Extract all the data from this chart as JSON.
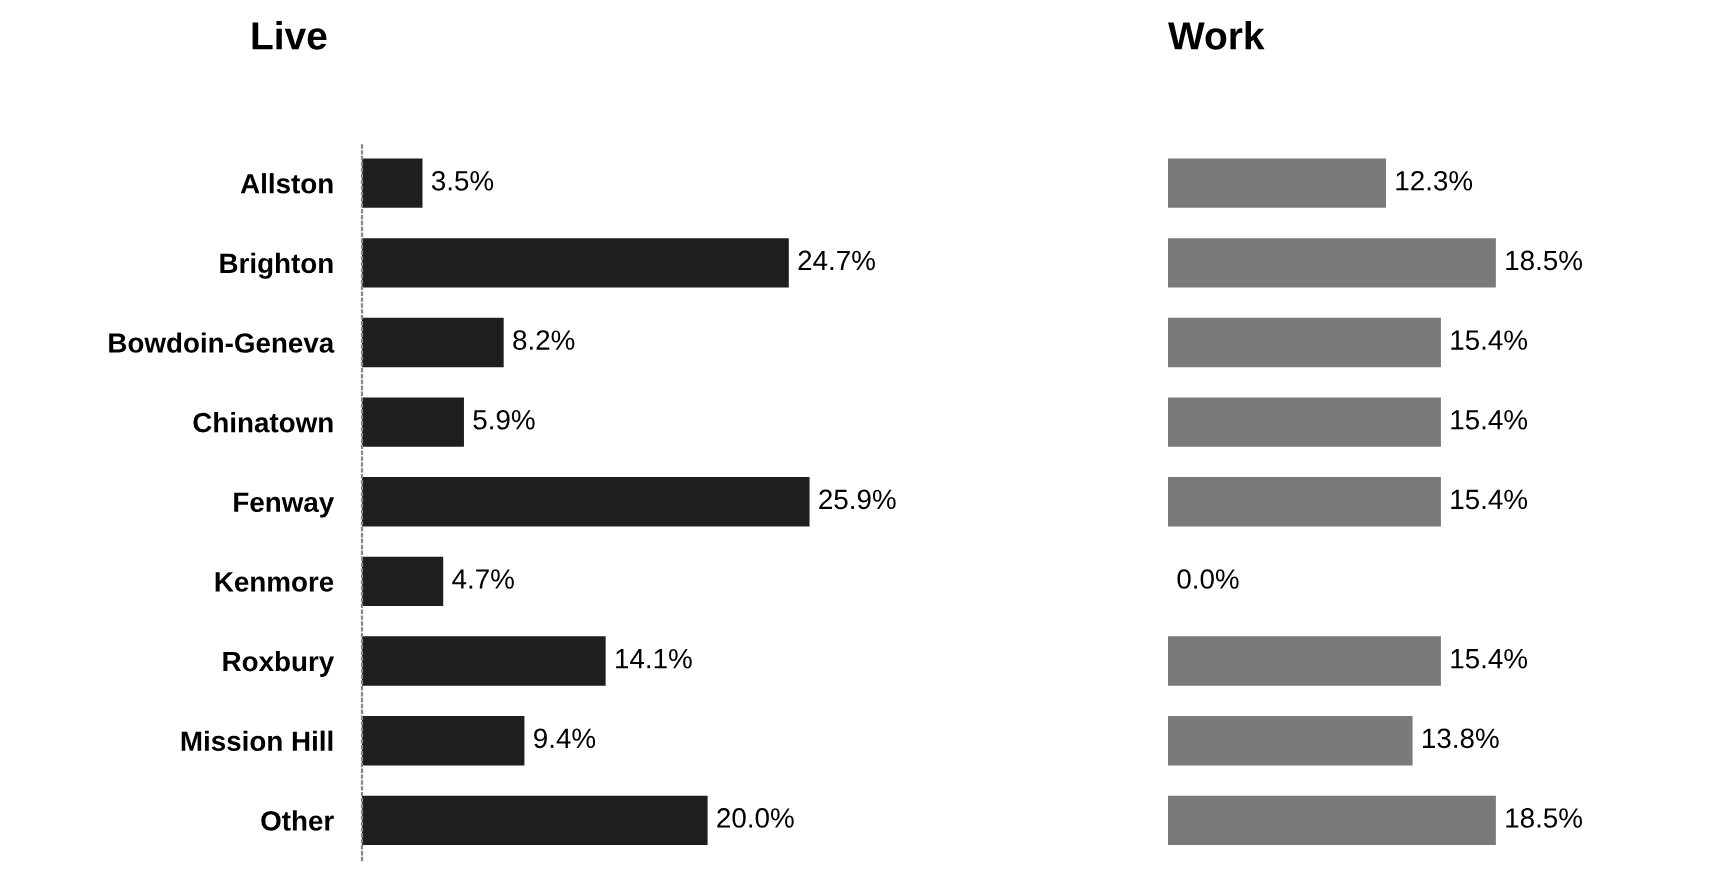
{
  "chart_data": [
    {
      "type": "bar",
      "orientation": "horizontal",
      "title": "Live",
      "categories": [
        "Allston",
        "Brighton",
        "Bowdoin-Geneva",
        "Chinatown",
        "Fenway",
        "Kenmore",
        "Roxbury",
        "Mission Hill",
        "Other"
      ],
      "values": [
        3.5,
        24.7,
        8.2,
        5.9,
        25.9,
        4.7,
        14.1,
        9.4,
        20.0
      ],
      "color": "#1e1e1e",
      "value_labels": [
        "3.5%",
        "24.7%",
        "8.2%",
        "5.9%",
        "25.9%",
        "4.7%",
        "14.1%",
        "9.4%",
        "20.0%"
      ],
      "tick_labels": "y",
      "grid": false,
      "legend": false
    },
    {
      "type": "bar",
      "orientation": "horizontal",
      "title": "Work",
      "categories": [
        null,
        null,
        null,
        null,
        null,
        null,
        null,
        null,
        null
      ],
      "values": [
        12.3,
        18.5,
        15.4,
        15.4,
        15.4,
        0.0,
        15.4,
        13.8,
        18.5
      ],
      "color": "#7a7a7a",
      "value_labels": [
        "12.3%",
        "18.5%",
        "15.4%",
        "15.4%",
        "15.4%",
        "0.0%",
        "15.4%",
        "13.8%",
        "18.5%"
      ],
      "tick_labels": false,
      "grid": false,
      "legend": false
    }
  ]
}
